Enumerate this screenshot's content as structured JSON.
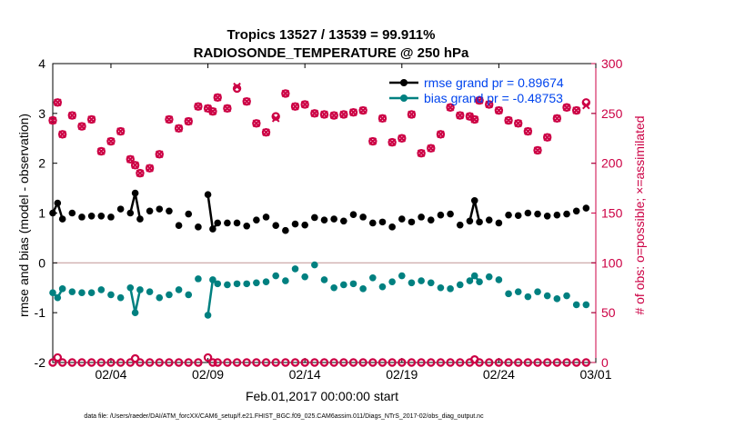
{
  "chart_data": {
    "type": "line",
    "title": "Tropics 13527 / 13539 = 99.911%",
    "subtitle": "RADIOSONDE_TEMPERATURE @ 250 hPa",
    "xlabel": "Feb.01,2017 00:00:00 start",
    "ylabel_left": "rmse and bias (model - observation)",
    "ylabel_right": "# of obs: o=possible; ×=assimilated",
    "ylim_left": [
      -2,
      4
    ],
    "ylim_right": [
      0,
      300
    ],
    "xlim": [
      "2017-02-01",
      "2017-03-01"
    ],
    "x_ticks": [
      "02/04",
      "02/09",
      "02/14",
      "02/19",
      "02/24",
      "03/01"
    ],
    "y_ticks_left": [
      "-2",
      "-1",
      "0",
      "1",
      "2",
      "3",
      "4"
    ],
    "y_ticks_right": [
      "0",
      "50",
      "100",
      "150",
      "200",
      "250",
      "300"
    ],
    "legend_position": "top-right",
    "x": [
      "2017-02-01 00:00",
      "2017-02-01 06:00",
      "2017-02-01 12:00",
      "2017-02-02 00:00",
      "2017-02-02 12:00",
      "2017-02-03 00:00",
      "2017-02-03 12:00",
      "2017-02-04 00:00",
      "2017-02-04 12:00",
      "2017-02-05 00:00",
      "2017-02-05 06:00",
      "2017-02-05 12:00",
      "2017-02-06 00:00",
      "2017-02-06 12:00",
      "2017-02-07 00:00",
      "2017-02-07 12:00",
      "2017-02-08 00:00",
      "2017-02-08 12:00",
      "2017-02-09 00:00",
      "2017-02-09 06:00",
      "2017-02-09 12:00",
      "2017-02-10 00:00",
      "2017-02-10 12:00",
      "2017-02-11 00:00",
      "2017-02-11 12:00",
      "2017-02-12 00:00",
      "2017-02-12 12:00",
      "2017-02-13 00:00",
      "2017-02-13 12:00",
      "2017-02-14 00:00",
      "2017-02-14 12:00",
      "2017-02-15 00:00",
      "2017-02-15 12:00",
      "2017-02-16 00:00",
      "2017-02-16 12:00",
      "2017-02-17 00:00",
      "2017-02-17 12:00",
      "2017-02-18 00:00",
      "2017-02-18 12:00",
      "2017-02-19 00:00",
      "2017-02-19 12:00",
      "2017-02-20 00:00",
      "2017-02-20 12:00",
      "2017-02-21 00:00",
      "2017-02-21 12:00",
      "2017-02-22 00:00",
      "2017-02-22 12:00",
      "2017-02-22 18:00",
      "2017-02-23 00:00",
      "2017-02-23 12:00",
      "2017-02-24 00:00",
      "2017-02-24 12:00",
      "2017-02-25 00:00",
      "2017-02-25 12:00",
      "2017-02-26 00:00",
      "2017-02-26 12:00",
      "2017-02-27 00:00",
      "2017-02-27 12:00",
      "2017-02-28 00:00",
      "2017-02-28 12:00"
    ],
    "series": [
      {
        "name": "rmse grand pr = 0.89674",
        "axis": "left",
        "color": "#000000",
        "values": [
          1.0,
          1.2,
          0.88,
          1.0,
          0.92,
          0.94,
          0.94,
          0.92,
          1.08,
          1.0,
          1.4,
          0.88,
          1.04,
          1.08,
          1.04,
          0.75,
          0.98,
          0.72,
          1.37,
          0.68,
          0.8,
          0.8,
          0.8,
          0.74,
          0.86,
          0.92,
          0.75,
          0.65,
          0.78,
          0.76,
          0.91,
          0.86,
          0.88,
          0.84,
          0.97,
          0.92,
          0.8,
          0.82,
          0.72,
          0.88,
          0.82,
          0.92,
          0.86,
          0.96,
          0.98,
          0.76,
          0.84,
          1.25,
          0.82,
          0.86,
          0.8,
          0.96,
          0.95,
          1.0,
          0.98,
          0.94,
          0.96,
          0.98,
          1.04,
          1.1
        ]
      },
      {
        "name": "bias grand pr = -0.48753",
        "axis": "left",
        "color": "#008080",
        "values": [
          -0.6,
          -0.7,
          -0.52,
          -0.58,
          -0.6,
          -0.6,
          -0.54,
          -0.64,
          -0.7,
          -0.5,
          -1.0,
          -0.54,
          -0.58,
          -0.7,
          -0.64,
          -0.54,
          -0.64,
          -0.32,
          -1.05,
          -0.34,
          -0.42,
          -0.44,
          -0.42,
          -0.42,
          -0.4,
          -0.38,
          -0.26,
          -0.36,
          -0.12,
          -0.28,
          -0.04,
          -0.34,
          -0.5,
          -0.44,
          -0.42,
          -0.52,
          -0.3,
          -0.48,
          -0.38,
          -0.26,
          -0.4,
          -0.36,
          -0.4,
          -0.5,
          -0.52,
          -0.44,
          -0.36,
          -0.26,
          -0.38,
          -0.28,
          -0.34,
          -0.62,
          -0.58,
          -0.68,
          -0.58,
          -0.66,
          -0.72,
          -0.66,
          -0.84,
          -0.84
        ]
      },
      {
        "name": "obs possible",
        "axis": "right",
        "color": "#cc0044",
        "values": [
          243,
          261,
          229,
          248,
          237,
          244,
          212,
          222,
          232,
          204,
          198,
          190,
          195,
          209,
          244,
          235,
          242,
          257,
          255,
          252,
          266,
          255,
          275,
          262,
          240,
          231,
          247,
          270,
          257,
          259,
          250,
          249,
          248,
          249,
          251,
          253,
          222,
          245,
          221,
          225,
          249,
          210,
          215,
          229,
          256,
          248,
          247,
          244,
          263,
          259,
          253,
          243,
          240,
          232,
          213,
          226,
          245,
          256,
          253,
          261
        ]
      },
      {
        "name": "obs assimilated",
        "axis": "right",
        "color": "#cc0044",
        "values": [
          243,
          261,
          229,
          248,
          237,
          244,
          212,
          222,
          232,
          204,
          198,
          190,
          195,
          209,
          244,
          235,
          242,
          257,
          255,
          252,
          266,
          255,
          277,
          262,
          240,
          231,
          245,
          270,
          257,
          259,
          250,
          249,
          248,
          249,
          251,
          253,
          222,
          245,
          221,
          225,
          249,
          210,
          215,
          229,
          256,
          248,
          247,
          244,
          263,
          259,
          253,
          243,
          240,
          232,
          213,
          226,
          245,
          256,
          253,
          258
        ]
      },
      {
        "name": "obs possible (bottom)",
        "axis": "right",
        "color": "#cc0044",
        "values": [
          0,
          5,
          0,
          0,
          0,
          0,
          0,
          0,
          0,
          0,
          4,
          0,
          0,
          0,
          0,
          0,
          0,
          0,
          5,
          0,
          0,
          0,
          0,
          0,
          0,
          0,
          0,
          0,
          0,
          0,
          0,
          0,
          0,
          0,
          0,
          0,
          0,
          0,
          0,
          0,
          0,
          0,
          0,
          0,
          0,
          0,
          0,
          3,
          0,
          0,
          0,
          0,
          0,
          0,
          0,
          0,
          0,
          0,
          0,
          0
        ]
      }
    ]
  },
  "footnote": "data file: /Users/raeder/DAI/ATM_forcXX/CAM6_setup/f.e21.FHIST_BGC.f09_025.CAM6assim.011/Diags_NTrS_2017-02/obs_diag_output.nc",
  "colors": {
    "rmse": "#000000",
    "bias": "#008080",
    "obs": "#cc0044",
    "legend_text": "#0044ee",
    "zero_line": "#c8a0a0",
    "right_axis": "#cc0044"
  }
}
